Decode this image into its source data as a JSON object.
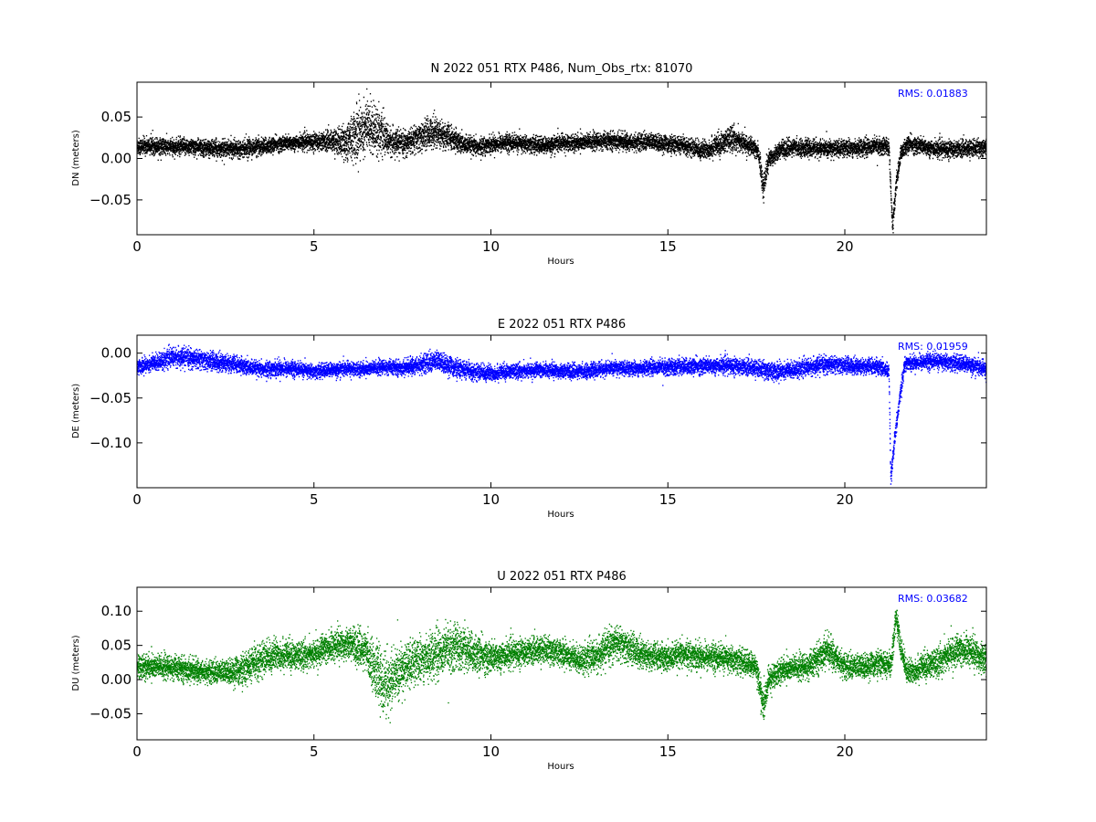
{
  "chart_data": [
    {
      "type": "scatter",
      "title": "N 2022 051 RTX  P486, Num_Obs_rtx: 81070",
      "xlabel": "Hours",
      "ylabel": "DN (meters)",
      "xlim": [
        0,
        24
      ],
      "ylim": [
        -0.092,
        0.092
      ],
      "xticks": [
        0,
        5,
        10,
        15,
        20
      ],
      "xtick_labels": [
        "0",
        "5",
        "10",
        "15",
        "20"
      ],
      "yticks": [
        -0.05,
        0.0,
        0.05
      ],
      "ytick_labels": [
        "−0.05",
        "0.00",
        "0.05"
      ],
      "annotation": "RMS:  0.01883",
      "color": "#000000",
      "series": [
        {
          "x": [
            0,
            0.5,
            1,
            1.5,
            2,
            2.5,
            3,
            3.5,
            4,
            4.5,
            5,
            5.5,
            5.9,
            6.2,
            6.5,
            6.8,
            7.1,
            7.5,
            8.0,
            8.4,
            8.8,
            9.2,
            9.6,
            10,
            10.5,
            11,
            11.5,
            12,
            12.5,
            13,
            13.5,
            14,
            14.5,
            15,
            15.5,
            16,
            16.5,
            16.8,
            17.2,
            17.55,
            17.7,
            17.85,
            18.2,
            18.6,
            19,
            19.5,
            20,
            20.5,
            20.9,
            21.25,
            21.35,
            21.45,
            21.6,
            21.8,
            22.2,
            22.6,
            23,
            23.5,
            24
          ],
          "y": [
            0.015,
            0.016,
            0.014,
            0.015,
            0.013,
            0.012,
            0.013,
            0.015,
            0.018,
            0.02,
            0.021,
            0.022,
            0.02,
            0.03,
            0.04,
            0.035,
            0.022,
            0.018,
            0.026,
            0.034,
            0.026,
            0.018,
            0.014,
            0.018,
            0.02,
            0.018,
            0.016,
            0.019,
            0.02,
            0.021,
            0.022,
            0.02,
            0.021,
            0.018,
            0.016,
            0.01,
            0.018,
            0.025,
            0.018,
            0.01,
            -0.035,
            0.0,
            0.012,
            0.014,
            0.013,
            0.012,
            0.013,
            0.014,
            0.016,
            0.015,
            -0.085,
            -0.03,
            0.01,
            0.018,
            0.015,
            0.012,
            0.012,
            0.013,
            0.014
          ],
          "spread": [
            0.009,
            0.009,
            0.009,
            0.009,
            0.009,
            0.009,
            0.009,
            0.009,
            0.008,
            0.008,
            0.009,
            0.011,
            0.018,
            0.03,
            0.03,
            0.025,
            0.015,
            0.012,
            0.015,
            0.017,
            0.014,
            0.01,
            0.009,
            0.009,
            0.009,
            0.009,
            0.009,
            0.009,
            0.009,
            0.009,
            0.009,
            0.009,
            0.009,
            0.009,
            0.009,
            0.01,
            0.012,
            0.013,
            0.01,
            0.009,
            0.015,
            0.009,
            0.009,
            0.009,
            0.009,
            0.009,
            0.009,
            0.009,
            0.009,
            0.009,
            0.01,
            0.01,
            0.009,
            0.009,
            0.009,
            0.009,
            0.009,
            0.009,
            0.009
          ]
        }
      ]
    },
    {
      "type": "scatter",
      "title": "E 2022 051 RTX  P486",
      "xlabel": "Hours",
      "ylabel": "DE (meters)",
      "xlim": [
        0,
        24
      ],
      "ylim": [
        -0.15,
        0.02
      ],
      "xticks": [
        0,
        5,
        10,
        15,
        20
      ],
      "xtick_labels": [
        "0",
        "5",
        "10",
        "15",
        "20"
      ],
      "yticks": [
        -0.1,
        -0.05,
        0.0
      ],
      "ytick_labels": [
        "−0.10",
        "−0.05",
        "0.00"
      ],
      "annotation": "RMS:  0.01959",
      "color": "#0000ff",
      "series": [
        {
          "x": [
            0,
            0.5,
            1,
            1.5,
            2,
            2.5,
            3,
            3.5,
            4,
            4.5,
            5,
            5.5,
            6,
            6.5,
            7,
            7.5,
            8,
            8.5,
            9,
            9.5,
            10,
            10.5,
            11,
            11.5,
            12,
            12.5,
            13,
            13.5,
            14,
            14.5,
            15,
            15.5,
            16,
            16.5,
            17,
            17.5,
            18,
            18.5,
            19,
            19.5,
            20,
            20.5,
            21,
            21.25,
            21.3,
            21.4,
            21.55,
            21.7,
            22,
            22.5,
            23,
            23.5,
            24
          ],
          "y": [
            -0.015,
            -0.01,
            -0.004,
            -0.005,
            -0.008,
            -0.01,
            -0.014,
            -0.018,
            -0.016,
            -0.017,
            -0.02,
            -0.018,
            -0.017,
            -0.017,
            -0.015,
            -0.016,
            -0.012,
            -0.008,
            -0.016,
            -0.02,
            -0.022,
            -0.02,
            -0.019,
            -0.018,
            -0.019,
            -0.02,
            -0.018,
            -0.016,
            -0.017,
            -0.015,
            -0.015,
            -0.014,
            -0.014,
            -0.013,
            -0.014,
            -0.016,
            -0.02,
            -0.018,
            -0.015,
            -0.012,
            -0.013,
            -0.014,
            -0.015,
            -0.02,
            -0.14,
            -0.1,
            -0.05,
            -0.01,
            -0.01,
            -0.008,
            -0.01,
            -0.012,
            -0.018
          ],
          "spread": [
            0.007,
            0.008,
            0.009,
            0.009,
            0.009,
            0.009,
            0.008,
            0.007,
            0.008,
            0.007,
            0.007,
            0.007,
            0.007,
            0.007,
            0.007,
            0.007,
            0.009,
            0.01,
            0.009,
            0.008,
            0.008,
            0.007,
            0.007,
            0.007,
            0.007,
            0.007,
            0.007,
            0.007,
            0.007,
            0.007,
            0.008,
            0.008,
            0.008,
            0.008,
            0.008,
            0.008,
            0.009,
            0.008,
            0.008,
            0.008,
            0.008,
            0.008,
            0.008,
            0.007,
            0.007,
            0.008,
            0.008,
            0.007,
            0.007,
            0.008,
            0.008,
            0.008,
            0.008
          ]
        }
      ]
    },
    {
      "type": "scatter",
      "title": "U 2022 051 RTX  P486",
      "xlabel": "Hours",
      "ylabel": "DU (meters)",
      "xlim": [
        0,
        24
      ],
      "ylim": [
        -0.088,
        0.135
      ],
      "xticks": [
        0,
        5,
        10,
        15,
        20
      ],
      "xtick_labels": [
        "0",
        "5",
        "10",
        "15",
        "20"
      ],
      "yticks": [
        -0.05,
        0.0,
        0.05,
        0.1
      ],
      "ytick_labels": [
        "−0.05",
        "0.00",
        "0.05",
        "0.10"
      ],
      "annotation": "RMS:  0.03682",
      "color": "#008000",
      "series": [
        {
          "x": [
            0,
            0.5,
            1,
            1.5,
            2,
            2.5,
            3,
            3.5,
            4,
            4.5,
            5,
            5.5,
            6,
            6.5,
            6.8,
            7.0,
            7.3,
            7.6,
            8,
            8.5,
            9,
            9.5,
            10,
            10.5,
            11,
            11.5,
            12,
            12.5,
            13,
            13.5,
            14,
            14.5,
            15,
            15.5,
            16,
            16.5,
            17,
            17.5,
            17.7,
            17.85,
            18.2,
            18.6,
            19,
            19.5,
            20,
            20.5,
            21,
            21.3,
            21.45,
            21.6,
            21.8,
            22.2,
            22.6,
            23,
            23.5,
            24
          ],
          "y": [
            0.02,
            0.02,
            0.018,
            0.015,
            0.012,
            0.012,
            0.015,
            0.03,
            0.038,
            0.035,
            0.038,
            0.05,
            0.055,
            0.04,
            0.01,
            -0.01,
            0.005,
            0.02,
            0.03,
            0.04,
            0.05,
            0.04,
            0.032,
            0.038,
            0.042,
            0.045,
            0.04,
            0.03,
            0.035,
            0.055,
            0.045,
            0.035,
            0.032,
            0.038,
            0.035,
            0.033,
            0.028,
            0.02,
            -0.04,
            0.0,
            0.015,
            0.018,
            0.02,
            0.045,
            0.02,
            0.02,
            0.025,
            0.02,
            0.095,
            0.04,
            0.01,
            0.02,
            0.025,
            0.04,
            0.045,
            0.03
          ],
          "spread": [
            0.016,
            0.016,
            0.015,
            0.015,
            0.014,
            0.015,
            0.02,
            0.022,
            0.02,
            0.018,
            0.017,
            0.02,
            0.02,
            0.025,
            0.035,
            0.04,
            0.035,
            0.03,
            0.028,
            0.03,
            0.03,
            0.025,
            0.02,
            0.018,
            0.017,
            0.017,
            0.017,
            0.017,
            0.02,
            0.022,
            0.02,
            0.018,
            0.017,
            0.017,
            0.017,
            0.017,
            0.017,
            0.016,
            0.02,
            0.017,
            0.016,
            0.016,
            0.017,
            0.02,
            0.016,
            0.016,
            0.016,
            0.016,
            0.015,
            0.016,
            0.016,
            0.017,
            0.018,
            0.02,
            0.02,
            0.02
          ]
        }
      ]
    }
  ]
}
